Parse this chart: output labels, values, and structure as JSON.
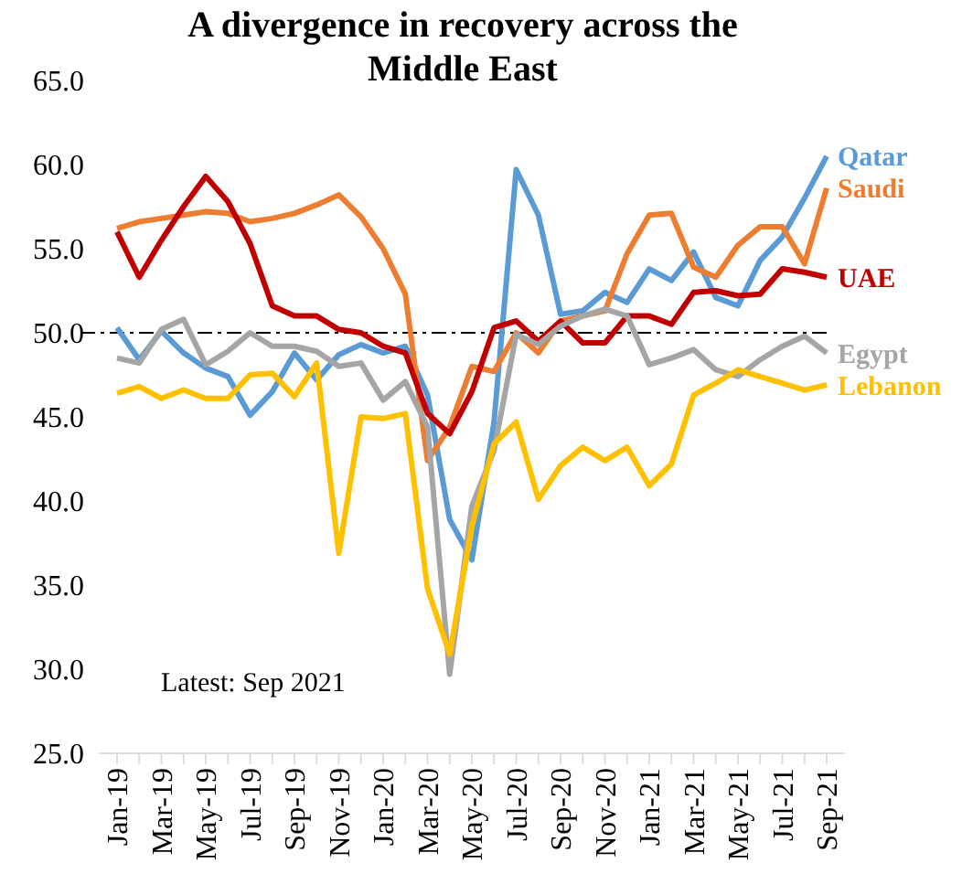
{
  "chart_data": {
    "type": "line",
    "title": "A divergence in recovery across the Middle East",
    "categories": [
      "Jan-19",
      null,
      "Mar-19",
      null,
      "May-19",
      null,
      "Jul-19",
      null,
      "Sep-19",
      null,
      "Nov-19",
      null,
      "Jan-20",
      null,
      "Mar-20",
      null,
      "May-20",
      null,
      "Jul-20",
      null,
      "Sep-20",
      null,
      "Nov-20",
      null,
      "Jan-21",
      null,
      "Mar-21",
      null,
      "May-21",
      null,
      "Jul-21",
      null,
      "Sep-21"
    ],
    "series": [
      {
        "name": "Qatar",
        "color": "#5b9bd5",
        "values": [
          50.3,
          48.4,
          50.1,
          48.8,
          47.9,
          47.4,
          45.1,
          46.5,
          48.8,
          47.2,
          48.7,
          49.3,
          48.8,
          49.2,
          46.3,
          38.9,
          36.5,
          44.7,
          59.7,
          57,
          51.1,
          51.3,
          52.4,
          51.8,
          53.8,
          53.1,
          54.8,
          52.1,
          51.6,
          54.3,
          55.7,
          58,
          60.5
        ]
      },
      {
        "name": "Saudi",
        "color": "#ed7d31",
        "values": [
          56.2,
          56.6,
          56.8,
          57,
          57.2,
          57.1,
          56.6,
          56.8,
          57.1,
          57.6,
          58.2,
          56.9,
          55,
          52.3,
          42.4,
          44.4,
          48,
          47.7,
          50,
          48.8,
          50.7,
          51,
          51.3,
          54.7,
          57,
          57.1,
          53.9,
          53.3,
          55.2,
          56.3,
          56.3,
          54.1,
          58.6
        ]
      },
      {
        "name": "UAE",
        "color": "#c00000",
        "values": [
          56,
          53.3,
          55.5,
          57.5,
          59.3,
          57.8,
          55.3,
          51.6,
          51,
          51,
          50.2,
          50,
          49.2,
          48.8,
          45.2,
          44,
          46.5,
          50.3,
          50.7,
          49.5,
          50.7,
          49.4,
          49.4,
          51,
          51,
          50.5,
          52.4,
          52.5,
          52.2,
          52.3,
          53.8,
          53.6,
          53.3
        ]
      },
      {
        "name": "Egypt",
        "color": "#a5a5a5",
        "values": [
          48.5,
          48.2,
          50.2,
          50.8,
          48.1,
          48.9,
          50,
          49.2,
          49.2,
          48.9,
          48,
          48.2,
          46,
          47.1,
          44.4,
          29.7,
          39.7,
          43,
          49.9,
          49.3,
          50.4,
          51,
          51.4,
          51,
          48.1,
          48.5,
          49,
          47.8,
          47.4,
          48.4,
          49.2,
          49.8,
          48.8
        ]
      },
      {
        "name": "Lebanon",
        "color": "#ffc000",
        "values": [
          46.4,
          46.8,
          46.1,
          46.6,
          46.1,
          46.1,
          47.5,
          47.6,
          46.2,
          48.2,
          36.9,
          45,
          44.9,
          45.2,
          34.8,
          30.9,
          38.5,
          43.4,
          44.7,
          40.1,
          42.1,
          43.2,
          42.4,
          43.2,
          40.9,
          42.2,
          46.3,
          47,
          47.8,
          47.4,
          47,
          46.6,
          46.9
        ]
      }
    ],
    "ylim": [
      25,
      65
    ],
    "yticks": [
      {
        "value": 25,
        "label": "25.0"
      },
      {
        "value": 30,
        "label": "30.0"
      },
      {
        "value": 35,
        "label": "35.0"
      },
      {
        "value": 40,
        "label": "40.0"
      },
      {
        "value": 45,
        "label": "45.0"
      },
      {
        "value": 50,
        "label": "50.0"
      },
      {
        "value": 55,
        "label": "55.0"
      },
      {
        "value": 60,
        "label": "60.0"
      },
      {
        "value": 65,
        "label": "65.0"
      }
    ],
    "ref_lines": [
      {
        "axis": "y",
        "value": 50,
        "color": "#000000",
        "line_style": "dashdot"
      }
    ],
    "annotations": [
      "Latest: Sep 2021"
    ],
    "legend": "right",
    "grid": false,
    "marker": "none",
    "line_style": "solid"
  }
}
